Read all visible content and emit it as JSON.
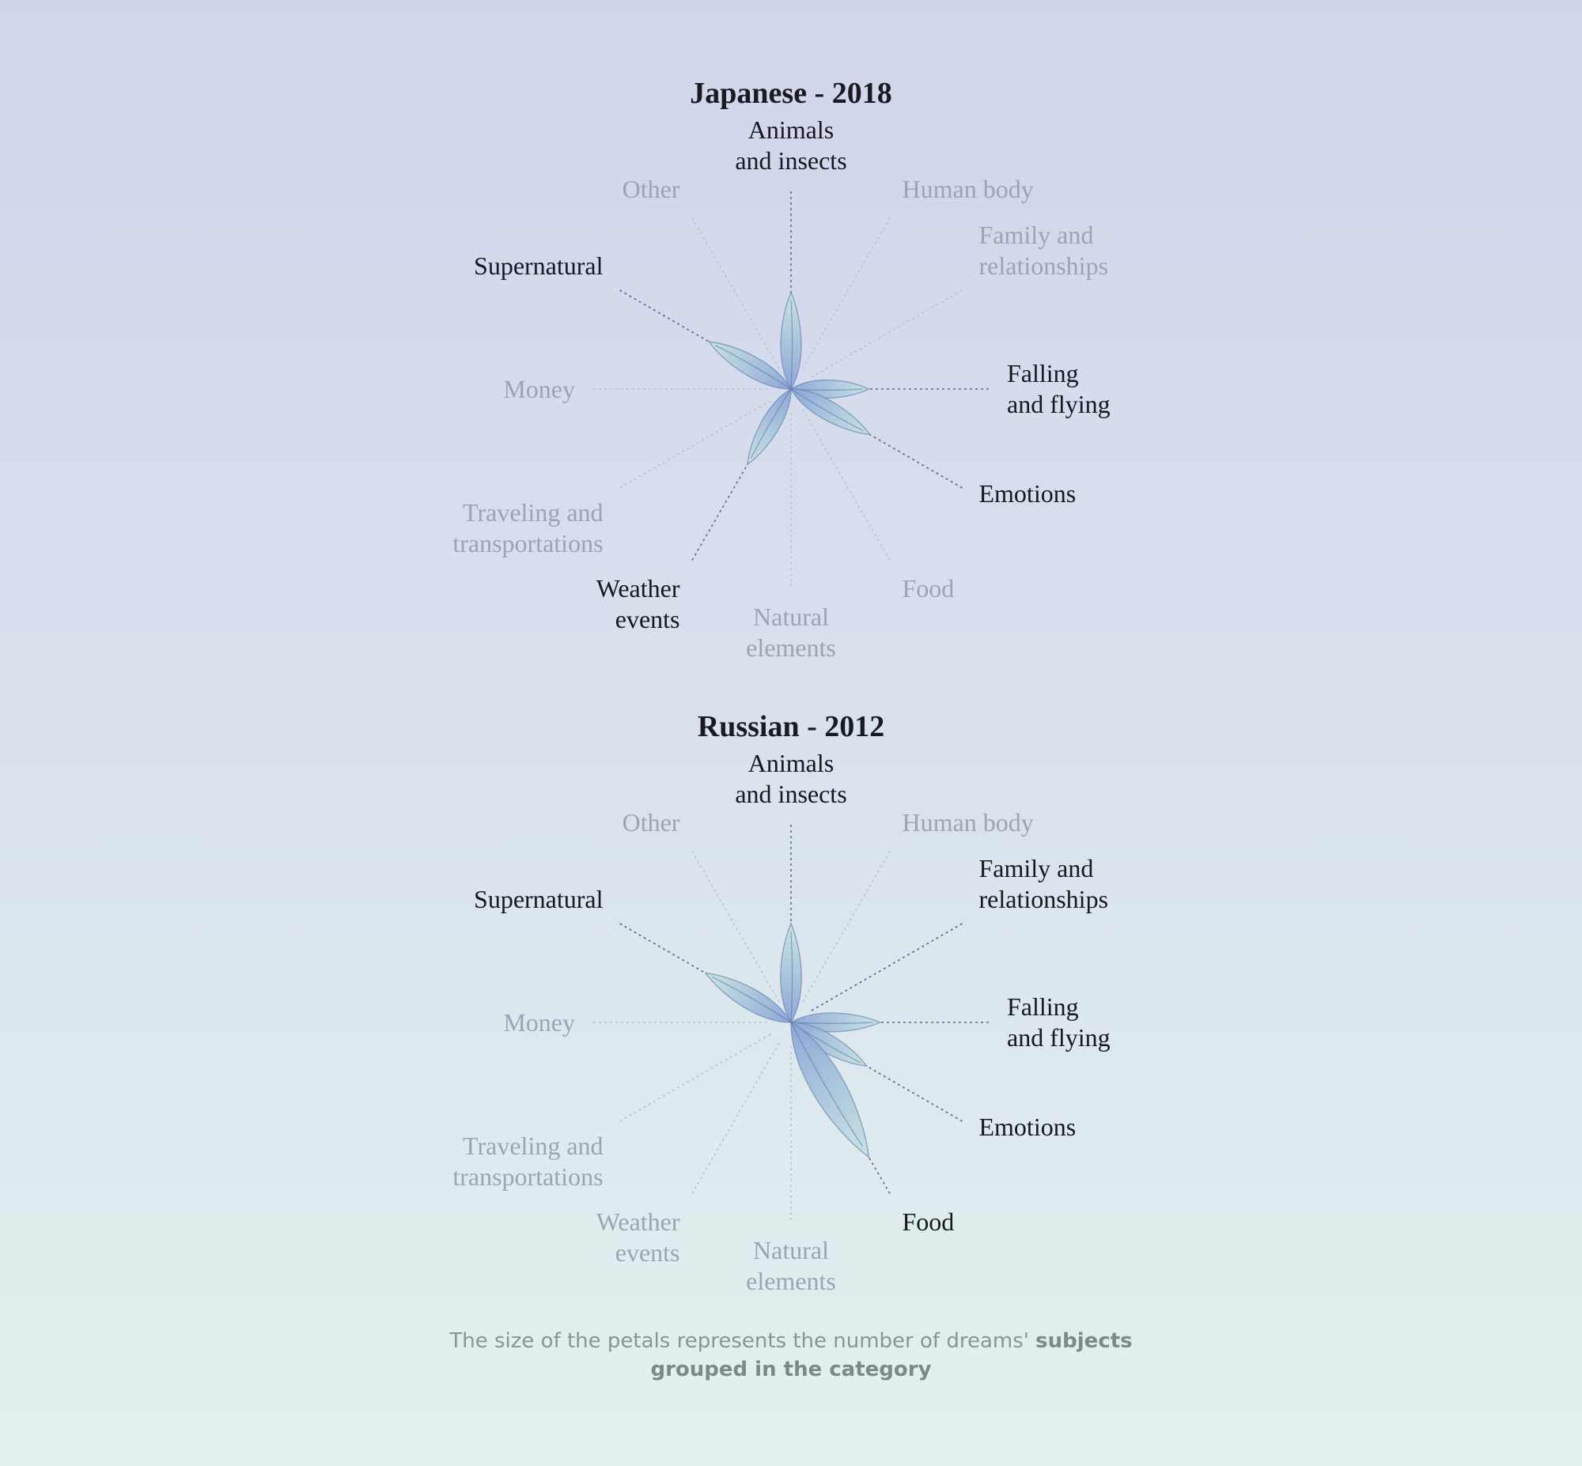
{
  "colors": {
    "active_label": "#17171f",
    "inactive_label": "#9ca4b3",
    "active_guide": "#5c6b92",
    "inactive_guide": "#b9c3d3",
    "petal_fill_inner": "#8aa4d6",
    "petal_fill_outer": "#c6e4e0",
    "petal_stroke": "#6f86b5"
  },
  "chart_data": [
    {
      "type": "radial-petal",
      "title": "Japanese - 2018",
      "categories": [
        "Animals\nand insects",
        "Human body",
        "Family and\nrelationships",
        "Falling\nand flying",
        "Emotions",
        "Food",
        "Natural\nelements",
        "Weather\nevents",
        "Traveling and\ntransportations",
        "Money",
        "Supernatural",
        "Other"
      ],
      "active": [
        true,
        false,
        false,
        true,
        true,
        false,
        false,
        true,
        false,
        false,
        true,
        false
      ],
      "values": [
        0.51,
        0,
        0,
        0.41,
        0.48,
        0,
        0,
        0.46,
        0,
        0,
        0.5,
        0
      ]
    },
    {
      "type": "radial-petal",
      "title": "Russian - 2012",
      "categories": [
        "Animals\nand insects",
        "Human body",
        "Family and\nrelationships",
        "Falling\nand flying",
        "Emotions",
        "Food",
        "Natural\nelements",
        "Weather\nevents",
        "Traveling and\ntransportations",
        "Money",
        "Supernatural",
        "Other"
      ],
      "active": [
        true,
        false,
        true,
        true,
        true,
        true,
        false,
        false,
        false,
        false,
        true,
        false
      ],
      "values": [
        0.52,
        0,
        0,
        0.47,
        0.46,
        0.82,
        0,
        0,
        0,
        0,
        0.52,
        0
      ]
    }
  ],
  "caption": {
    "plain": "The size of the petals represents the number of dreams' ",
    "bold_1": "subjects",
    "bold_2": "grouped in the category"
  }
}
